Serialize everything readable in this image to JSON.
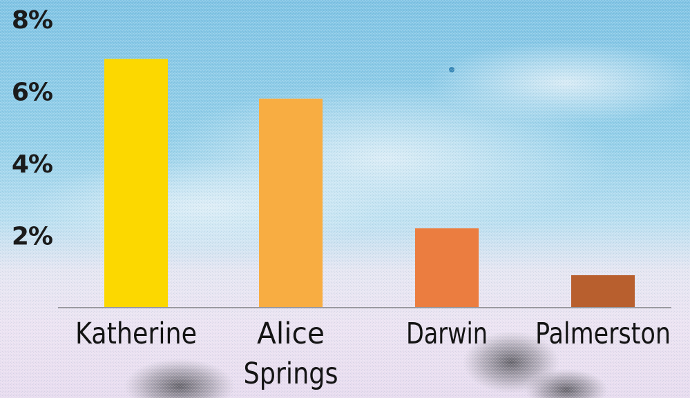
{
  "chart_data": {
    "type": "bar",
    "categories": [
      "Katherine",
      "Alice Springs",
      "Darwin",
      "Palmerston"
    ],
    "category_lines": [
      [
        "Katherine"
      ],
      [
        "Alice",
        "Springs"
      ],
      [
        "Darwin"
      ],
      [
        "Palmerston"
      ]
    ],
    "values": [
      6.9,
      5.8,
      2.2,
      0.9
    ],
    "colors": [
      "#FCD800",
      "#F8AD42",
      "#EB7D40",
      "#B85F2E"
    ],
    "y_ticks": [
      2,
      4,
      6,
      8
    ],
    "y_tick_labels": [
      "2%",
      "4%",
      "6%",
      "8%"
    ],
    "ylim": [
      0,
      8
    ],
    "grid": false,
    "legend": "none",
    "title": "",
    "xlabel": "",
    "ylabel": ""
  }
}
